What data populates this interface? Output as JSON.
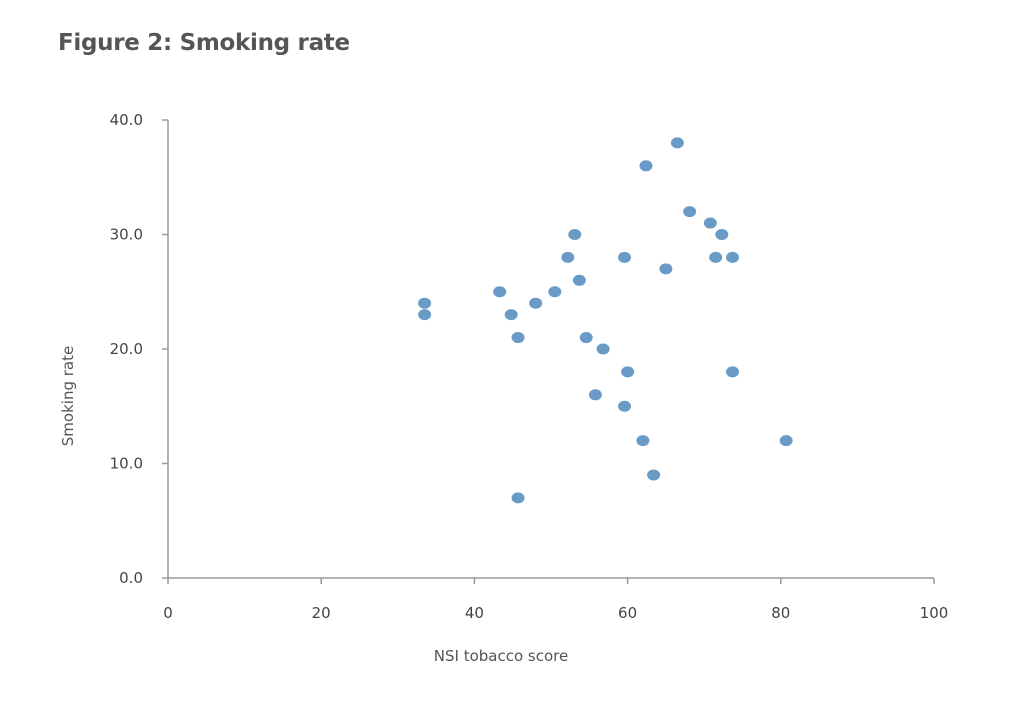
{
  "figure": {
    "title": "Figure 2: Smoking rate"
  },
  "colors": {
    "point": "#6a9bc7",
    "axis": "#9a9a9a",
    "text": "#444444"
  },
  "chart_data": {
    "type": "scatter",
    "title": "Figure 2: Smoking rate",
    "xlabel": "NSI tobacco score",
    "ylabel": "Smoking rate",
    "xlim": [
      0,
      100
    ],
    "ylim": [
      0,
      40
    ],
    "x_ticks": [
      0,
      20,
      40,
      60,
      80,
      100
    ],
    "x_tick_labels": [
      "0",
      "20",
      "40",
      "60",
      "80",
      "100"
    ],
    "y_ticks": [
      0,
      10,
      20,
      30,
      40
    ],
    "y_tick_labels": [
      "0.0",
      "10.0",
      "20.0",
      "30.0",
      "40.0"
    ],
    "grid": false,
    "series": [
      {
        "points": [
          {
            "x": 33.5,
            "y": 24
          },
          {
            "x": 33.5,
            "y": 23
          },
          {
            "x": 43.3,
            "y": 25
          },
          {
            "x": 44.8,
            "y": 23
          },
          {
            "x": 45.7,
            "y": 21
          },
          {
            "x": 45.7,
            "y": 7
          },
          {
            "x": 48.0,
            "y": 24
          },
          {
            "x": 50.5,
            "y": 25
          },
          {
            "x": 52.2,
            "y": 28
          },
          {
            "x": 53.1,
            "y": 30
          },
          {
            "x": 53.7,
            "y": 26
          },
          {
            "x": 54.6,
            "y": 21
          },
          {
            "x": 55.8,
            "y": 16
          },
          {
            "x": 56.8,
            "y": 20
          },
          {
            "x": 59.6,
            "y": 28
          },
          {
            "x": 59.6,
            "y": 15
          },
          {
            "x": 60.0,
            "y": 18
          },
          {
            "x": 62.0,
            "y": 12
          },
          {
            "x": 62.4,
            "y": 36
          },
          {
            "x": 63.4,
            "y": 9
          },
          {
            "x": 65.0,
            "y": 27
          },
          {
            "x": 66.5,
            "y": 38
          },
          {
            "x": 68.1,
            "y": 32
          },
          {
            "x": 70.8,
            "y": 31
          },
          {
            "x": 71.5,
            "y": 28
          },
          {
            "x": 72.3,
            "y": 30
          },
          {
            "x": 73.7,
            "y": 28
          },
          {
            "x": 73.7,
            "y": 18
          },
          {
            "x": 80.7,
            "y": 12
          }
        ]
      }
    ]
  }
}
